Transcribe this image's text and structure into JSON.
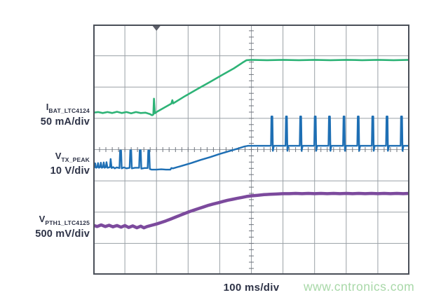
{
  "page": {
    "background": "#ffffff"
  },
  "watermark": {
    "text": "www.cntronics.com",
    "color": "#a8d8a8"
  },
  "chart_data": {
    "type": "line",
    "title": "",
    "xlabel": "100 ms/div",
    "ylabel": "",
    "grid": "oscilloscope graticule, 10 x 8 divisions, minor ticks (5/div) on center axes",
    "x_divisions": 10,
    "y_divisions": 8,
    "minor_ticks_per_division": 5,
    "timebase": "100 ms/div",
    "trigger_marker_x_div": 2.0,
    "units_note": "points are [x_div, y_div] with y measured in divisions from top of graticule; no absolute axis values shown on screen",
    "colors": {
      "grid": "#9aa0a6",
      "border": "#4a4f58",
      "ticks": "#70747d",
      "trigger": "#5c5e68",
      "label_text": "#2e3347"
    },
    "series": [
      {
        "name": "I_BAT_LTC4124",
        "symbol": "I",
        "subscript": "BAT_LTC4124",
        "scale": "50 mA/div",
        "color": "#2eb377",
        "stroke_width": 2.6,
        "description": "battery charge current: flat ~2.8 div, narrow spike up at 1.9 div, linear ramp, plateau at ~1.13 div after 4.9 div",
        "points": [
          [
            0,
            2.82
          ],
          [
            0.15,
            2.8
          ],
          [
            0.3,
            2.83
          ],
          [
            0.45,
            2.8
          ],
          [
            0.6,
            2.83
          ],
          [
            0.75,
            2.79
          ],
          [
            0.9,
            2.83
          ],
          [
            1.05,
            2.8
          ],
          [
            1.2,
            2.84
          ],
          [
            1.35,
            2.8
          ],
          [
            1.5,
            2.83
          ],
          [
            1.65,
            2.82
          ],
          [
            1.78,
            2.86
          ],
          [
            1.86,
            2.9
          ],
          [
            1.9,
            2.88
          ],
          [
            1.92,
            2.37
          ],
          [
            1.95,
            2.84
          ],
          [
            2.0,
            2.8
          ],
          [
            2.47,
            2.53
          ],
          [
            2.5,
            2.42
          ],
          [
            2.53,
            2.52
          ],
          [
            2.9,
            2.29
          ],
          [
            3.3,
            2.06
          ],
          [
            3.7,
            1.83
          ],
          [
            4.1,
            1.6
          ],
          [
            4.45,
            1.4
          ],
          [
            4.72,
            1.22
          ],
          [
            4.85,
            1.14
          ],
          [
            5.0,
            1.13
          ],
          [
            5.5,
            1.14
          ],
          [
            6.0,
            1.13
          ],
          [
            6.5,
            1.14
          ],
          [
            7.0,
            1.13
          ],
          [
            7.5,
            1.14
          ],
          [
            8.0,
            1.13
          ],
          [
            8.5,
            1.14
          ],
          [
            9.0,
            1.13
          ],
          [
            9.5,
            1.14
          ],
          [
            10,
            1.13
          ]
        ]
      },
      {
        "name": "V_TX_PEAK",
        "symbol": "V",
        "subscript": "TX_PEAK",
        "scale": "10 V/div",
        "color": "#1e6fb4",
        "stroke_width": 2.4,
        "description": "transmitter peak voltage: pulsed near 4.6 div, dip to 4.64 div, ramp from 2.5 div, plateau 3.88 div with periodic narrow spikes to 2.94 div every ~0.455 div",
        "points": [
          [
            0,
            4.57
          ],
          [
            0.04,
            4.57
          ],
          [
            0.06,
            4.44
          ],
          [
            0.09,
            4.58
          ],
          [
            0.13,
            4.56
          ],
          [
            0.15,
            4.43
          ],
          [
            0.18,
            4.58
          ],
          [
            0.22,
            4.56
          ],
          [
            0.24,
            4.42
          ],
          [
            0.27,
            4.58
          ],
          [
            0.31,
            4.56
          ],
          [
            0.33,
            4.41
          ],
          [
            0.36,
            4.58
          ],
          [
            0.4,
            4.56
          ],
          [
            0.42,
            4.4
          ],
          [
            0.45,
            4.58
          ],
          [
            0.5,
            4.57
          ],
          [
            0.53,
            4.56
          ],
          [
            0.55,
            4.3
          ],
          [
            0.58,
            4.59
          ],
          [
            0.63,
            4.56
          ],
          [
            0.68,
            4.6
          ],
          [
            0.74,
            4.57
          ],
          [
            0.83,
            4.59
          ],
          [
            0.85,
            4.03
          ],
          [
            0.88,
            4.03
          ],
          [
            0.9,
            4.6
          ],
          [
            0.97,
            4.57
          ],
          [
            1.05,
            4.6
          ],
          [
            1.15,
            4.58
          ],
          [
            1.17,
            4.02
          ],
          [
            1.2,
            4.02
          ],
          [
            1.22,
            4.6
          ],
          [
            1.32,
            4.58
          ],
          [
            1.45,
            4.58
          ],
          [
            1.47,
            4.02
          ],
          [
            1.5,
            4.02
          ],
          [
            1.52,
            4.61
          ],
          [
            1.62,
            4.59
          ],
          [
            1.72,
            4.59
          ],
          [
            1.74,
            4.03
          ],
          [
            1.77,
            4.03
          ],
          [
            1.79,
            4.62
          ],
          [
            1.85,
            4.64
          ],
          [
            2.0,
            4.64
          ],
          [
            2.15,
            4.63
          ],
          [
            2.3,
            4.64
          ],
          [
            2.44,
            4.64
          ],
          [
            2.47,
            4.59
          ],
          [
            2.52,
            4.6
          ],
          [
            2.8,
            4.52
          ],
          [
            3.1,
            4.43
          ],
          [
            3.4,
            4.33
          ],
          [
            3.7,
            4.24
          ],
          [
            4.0,
            4.14
          ],
          [
            4.3,
            4.05
          ],
          [
            4.6,
            3.96
          ],
          [
            4.78,
            3.9
          ],
          [
            4.9,
            3.88
          ],
          [
            5.2,
            3.88
          ],
          [
            5.5,
            3.88
          ],
          [
            5.62,
            3.88
          ],
          [
            5.635,
            2.94
          ],
          [
            5.665,
            2.94
          ],
          [
            5.68,
            4.04
          ],
          [
            5.71,
            3.88
          ],
          [
            6.08,
            3.88
          ],
          [
            6.095,
            2.94
          ],
          [
            6.125,
            2.94
          ],
          [
            6.14,
            4.04
          ],
          [
            6.17,
            3.88
          ],
          [
            6.53,
            3.88
          ],
          [
            6.545,
            2.94
          ],
          [
            6.575,
            2.94
          ],
          [
            6.59,
            4.04
          ],
          [
            6.62,
            3.88
          ],
          [
            6.99,
            3.88
          ],
          [
            7.005,
            2.94
          ],
          [
            7.035,
            2.94
          ],
          [
            7.05,
            4.04
          ],
          [
            7.08,
            3.88
          ],
          [
            7.44,
            3.88
          ],
          [
            7.455,
            2.94
          ],
          [
            7.485,
            2.94
          ],
          [
            7.5,
            4.04
          ],
          [
            7.53,
            3.88
          ],
          [
            7.9,
            3.88
          ],
          [
            7.915,
            2.94
          ],
          [
            7.945,
            2.94
          ],
          [
            7.96,
            4.04
          ],
          [
            7.99,
            3.88
          ],
          [
            8.35,
            3.88
          ],
          [
            8.365,
            2.94
          ],
          [
            8.395,
            2.94
          ],
          [
            8.41,
            4.04
          ],
          [
            8.44,
            3.88
          ],
          [
            8.81,
            3.88
          ],
          [
            8.825,
            2.94
          ],
          [
            8.855,
            2.94
          ],
          [
            8.87,
            4.04
          ],
          [
            8.9,
            3.88
          ],
          [
            9.26,
            3.88
          ],
          [
            9.275,
            2.94
          ],
          [
            9.305,
            2.94
          ],
          [
            9.32,
            4.04
          ],
          [
            9.35,
            3.88
          ],
          [
            9.72,
            3.88
          ],
          [
            9.735,
            2.94
          ],
          [
            9.765,
            2.94
          ],
          [
            9.78,
            4.04
          ],
          [
            9.81,
            3.88
          ],
          [
            10,
            3.88
          ]
        ]
      },
      {
        "name": "V_PTH1_LTC4125",
        "symbol": "V",
        "subscript": "PTH1_LTC4125",
        "scale": "500 mV/div",
        "color": "#7c4a9d",
        "stroke_width": 4.5,
        "description": "LTC4125 PTH1 voltage: noisy flat ~6.45 div, slow ramp from 1.7 div, settles ~5.40 div after 6.3 div",
        "points": [
          [
            0,
            6.42
          ],
          [
            0.12,
            6.46
          ],
          [
            0.25,
            6.41
          ],
          [
            0.38,
            6.46
          ],
          [
            0.5,
            6.42
          ],
          [
            0.62,
            6.47
          ],
          [
            0.75,
            6.43
          ],
          [
            0.88,
            6.48
          ],
          [
            1.0,
            6.43
          ],
          [
            1.12,
            6.49
          ],
          [
            1.25,
            6.44
          ],
          [
            1.38,
            6.5
          ],
          [
            1.5,
            6.45
          ],
          [
            1.6,
            6.5
          ],
          [
            1.7,
            6.46
          ],
          [
            1.85,
            6.42
          ],
          [
            2.0,
            6.38
          ],
          [
            2.15,
            6.33
          ],
          [
            2.3,
            6.28
          ],
          [
            2.45,
            6.22
          ],
          [
            2.6,
            6.16
          ],
          [
            2.75,
            6.1
          ],
          [
            2.9,
            6.04
          ],
          [
            3.05,
            5.98
          ],
          [
            3.2,
            5.93
          ],
          [
            3.35,
            5.88
          ],
          [
            3.5,
            5.83
          ],
          [
            3.65,
            5.78
          ],
          [
            3.8,
            5.74
          ],
          [
            3.95,
            5.7
          ],
          [
            4.1,
            5.66
          ],
          [
            4.25,
            5.62
          ],
          [
            4.4,
            5.59
          ],
          [
            4.55,
            5.56
          ],
          [
            4.7,
            5.53
          ],
          [
            4.85,
            5.5
          ],
          [
            5.0,
            5.48
          ],
          [
            5.2,
            5.46
          ],
          [
            5.4,
            5.44
          ],
          [
            5.6,
            5.43
          ],
          [
            5.8,
            5.42
          ],
          [
            6.0,
            5.41
          ],
          [
            6.2,
            5.41
          ],
          [
            6.4,
            5.4
          ],
          [
            6.6,
            5.41
          ],
          [
            6.8,
            5.4
          ],
          [
            7.0,
            5.41
          ],
          [
            7.2,
            5.4
          ],
          [
            7.4,
            5.41
          ],
          [
            7.6,
            5.4
          ],
          [
            7.8,
            5.41
          ],
          [
            8.0,
            5.4
          ],
          [
            8.2,
            5.41
          ],
          [
            8.4,
            5.4
          ],
          [
            8.6,
            5.41
          ],
          [
            8.8,
            5.4
          ],
          [
            9.0,
            5.41
          ],
          [
            9.2,
            5.4
          ],
          [
            9.4,
            5.41
          ],
          [
            9.6,
            5.4
          ],
          [
            9.8,
            5.41
          ],
          [
            10,
            5.4
          ]
        ]
      }
    ]
  }
}
